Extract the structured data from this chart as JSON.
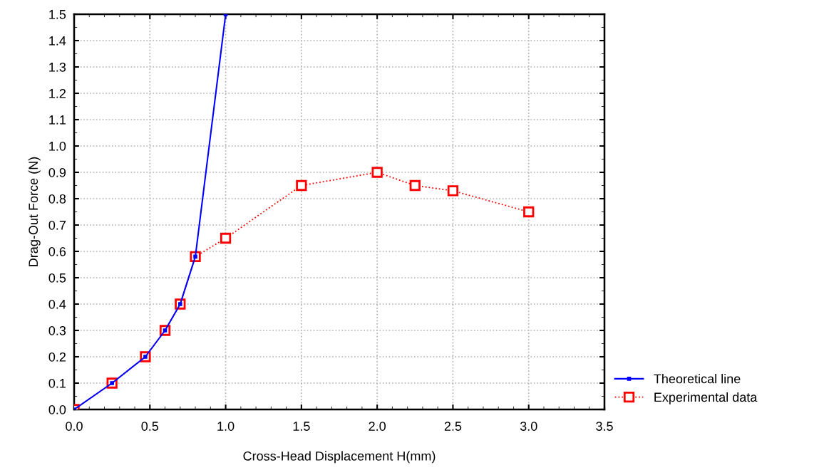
{
  "chart_data": {
    "type": "line",
    "xlabel": "Cross-Head Displacement H(mm)",
    "ylabel": "Drag-Out Force (N)",
    "xlim": [
      0,
      3.5
    ],
    "ylim": [
      0,
      1.5
    ],
    "xticks": [
      {
        "value": 0,
        "label": "0.0"
      },
      {
        "value": 0.5,
        "label": "0.5"
      },
      {
        "value": 1.0,
        "label": "1.0"
      },
      {
        "value": 1.5,
        "label": "1.5"
      },
      {
        "value": 2.0,
        "label": "2.0"
      },
      {
        "value": 2.5,
        "label": "2.5"
      },
      {
        "value": 3.0,
        "label": "3.0"
      },
      {
        "value": 3.5,
        "label": "3.5"
      }
    ],
    "yticks": [
      {
        "value": 0,
        "label": "0.0"
      },
      {
        "value": 0.1,
        "label": "0.1"
      },
      {
        "value": 0.2,
        "label": "0.2"
      },
      {
        "value": 0.3,
        "label": "0.3"
      },
      {
        "value": 0.4,
        "label": "0.4"
      },
      {
        "value": 0.5,
        "label": "0.5"
      },
      {
        "value": 0.6,
        "label": "0.6"
      },
      {
        "value": 0.7,
        "label": "0.7"
      },
      {
        "value": 0.8,
        "label": "0.8"
      },
      {
        "value": 0.9,
        "label": "0.9"
      },
      {
        "value": 1.0,
        "label": "1.0"
      },
      {
        "value": 1.1,
        "label": "1.1"
      },
      {
        "value": 1.2,
        "label": "1.2"
      },
      {
        "value": 1.3,
        "label": "1.3"
      },
      {
        "value": 1.4,
        "label": "1.4"
      },
      {
        "value": 1.5,
        "label": "1.5"
      }
    ],
    "grid": true,
    "legend": "bottom right",
    "series": [
      {
        "name": "Theoretical line",
        "color": "#0000ff",
        "line_style": "solid",
        "marker": "square",
        "x": [
          0,
          0.25,
          0.47,
          0.6,
          0.7,
          0.8,
          1.0
        ],
        "values": [
          0,
          0.1,
          0.2,
          0.3,
          0.4,
          0.58,
          1.5
        ]
      },
      {
        "name": "Experimental data",
        "color": "#ff0000",
        "line_style": "dotted",
        "marker": "square",
        "x": [
          0,
          0.25,
          0.47,
          0.6,
          0.7,
          0.8,
          1.0,
          1.5,
          2.0,
          2.25,
          2.5,
          3.0
        ],
        "values": [
          0,
          0.1,
          0.2,
          0.3,
          0.4,
          0.58,
          0.65,
          0.85,
          0.9,
          0.85,
          0.83,
          0.75
        ]
      }
    ]
  }
}
